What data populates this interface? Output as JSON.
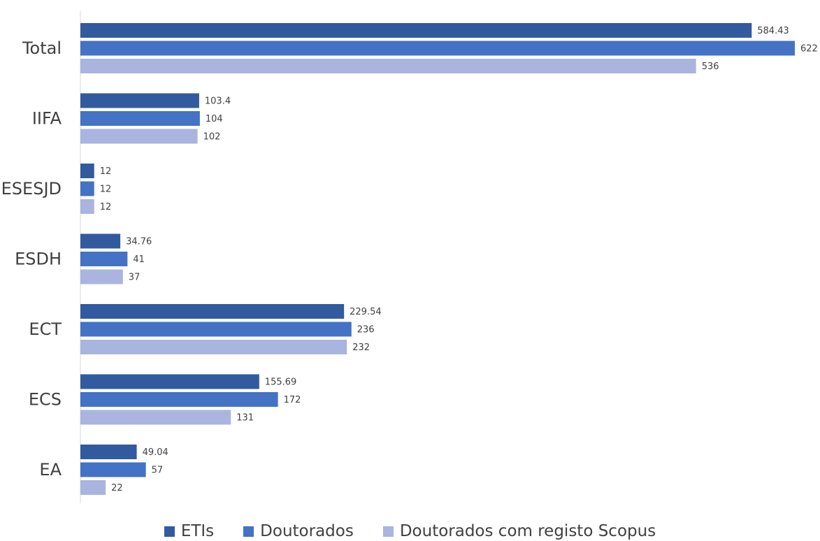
{
  "chart_data": {
    "type": "bar",
    "orientation": "horizontal",
    "categories": [
      "Total",
      "IIFA",
      "ESESJD",
      "ESDH",
      "ECT",
      "ECS",
      "EA"
    ],
    "series": [
      {
        "name": "ETIs",
        "color": "#325a9f",
        "values": [
          584.43,
          103.4,
          12,
          34.76,
          229.54,
          155.69,
          49.04
        ],
        "labels": [
          "584.43",
          "103.4",
          "12",
          "34.76",
          "229.54",
          "155.69",
          "49.04"
        ]
      },
      {
        "name": "Doutorados",
        "color": "#4472c4",
        "values": [
          622,
          104,
          12,
          41,
          236,
          172,
          57
        ],
        "labels": [
          "622",
          "104",
          "12",
          "41",
          "236",
          "172",
          "57"
        ]
      },
      {
        "name": "Doutorados com registo Scopus",
        "color": "#a9b5de",
        "values": [
          536,
          102,
          12,
          37,
          232,
          131,
          22
        ],
        "labels": [
          "536",
          "102",
          "12",
          "37",
          "232",
          "131",
          "22"
        ]
      }
    ],
    "xlim": [
      0,
      622
    ],
    "grid": false,
    "legend_position": "bottom"
  }
}
